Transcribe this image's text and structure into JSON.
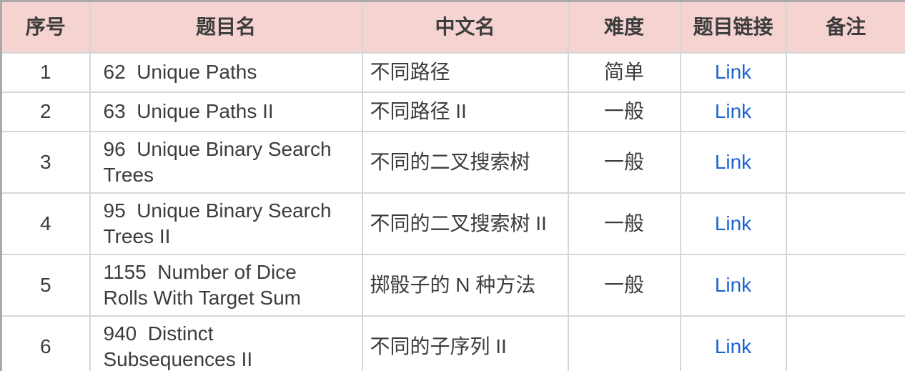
{
  "table": {
    "columns": [
      {
        "label": "序号"
      },
      {
        "label": "题目名"
      },
      {
        "label": "中文名"
      },
      {
        "label": "难度"
      },
      {
        "label": "题目链接"
      },
      {
        "label": "备注"
      }
    ],
    "rows": [
      {
        "index": "1",
        "title": "62  Unique Paths",
        "cn": "不同路径",
        "difficulty": "简单",
        "link": "Link",
        "note": ""
      },
      {
        "index": "2",
        "title": "63  Unique Paths II",
        "cn": "不同路径 II",
        "difficulty": "一般",
        "link": "Link",
        "note": ""
      },
      {
        "index": "3",
        "title": "96  Unique Binary Search\nTrees",
        "cn": "不同的二叉搜索树",
        "difficulty": "一般",
        "link": "Link",
        "note": ""
      },
      {
        "index": "4",
        "title": "95  Unique Binary Search\nTrees II",
        "cn": "不同的二叉搜索树 II",
        "difficulty": "一般",
        "link": "Link",
        "note": ""
      },
      {
        "index": "5",
        "title": "1155  Number of Dice\nRolls With Target Sum",
        "cn": "掷骰子的 N 种方法",
        "difficulty": "一般",
        "link": "Link",
        "note": ""
      },
      {
        "index": "6",
        "title": "940  Distinct\nSubsequences II",
        "cn": "不同的子序列 II",
        "difficulty": "",
        "link": "Link",
        "note": ""
      }
    ],
    "colors": {
      "header_bg": "#f4d3d0",
      "link": "#1b63d2",
      "text": "#3c3c3c",
      "border_outer": "#a9a9a9",
      "border_inner": "#d6d6d6"
    }
  }
}
